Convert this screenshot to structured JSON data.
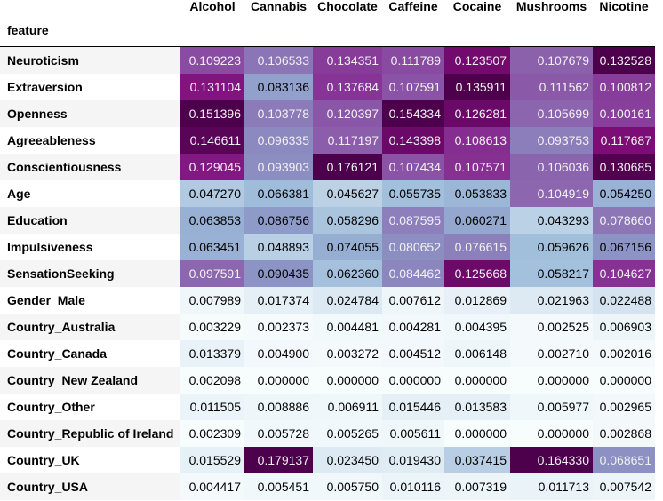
{
  "chart_data": {
    "type": "heatmap",
    "index_label": "feature",
    "columns": [
      "Alcohol",
      "Cannabis",
      "Chocolate",
      "Caffeine",
      "Cocaine",
      "Mushrooms",
      "Nicotine"
    ],
    "rows": [
      {
        "feature": "Neuroticism",
        "values": [
          "0.109223",
          "0.106533",
          "0.134351",
          "0.111789",
          "0.123507",
          "0.107679",
          "0.132528"
        ]
      },
      {
        "feature": "Extraversion",
        "values": [
          "0.131104",
          "0.083136",
          "0.137684",
          "0.107591",
          "0.135911",
          "0.111562",
          "0.100812"
        ]
      },
      {
        "feature": "Openness",
        "values": [
          "0.151396",
          "0.103778",
          "0.120397",
          "0.154334",
          "0.126281",
          "0.105699",
          "0.100161"
        ]
      },
      {
        "feature": "Agreeableness",
        "values": [
          "0.146611",
          "0.096335",
          "0.117197",
          "0.143398",
          "0.108613",
          "0.093753",
          "0.117687"
        ]
      },
      {
        "feature": "Conscientiousness",
        "values": [
          "0.129045",
          "0.093903",
          "0.176121",
          "0.107434",
          "0.107571",
          "0.106036",
          "0.130685"
        ]
      },
      {
        "feature": "Age",
        "values": [
          "0.047270",
          "0.066381",
          "0.045627",
          "0.055735",
          "0.053833",
          "0.104919",
          "0.054250"
        ]
      },
      {
        "feature": "Education",
        "values": [
          "0.063853",
          "0.086756",
          "0.058296",
          "0.087595",
          "0.060271",
          "0.043293",
          "0.078660"
        ]
      },
      {
        "feature": "Impulsiveness",
        "values": [
          "0.063451",
          "0.048893",
          "0.074055",
          "0.080652",
          "0.076615",
          "0.059626",
          "0.067156"
        ]
      },
      {
        "feature": "SensationSeeking",
        "values": [
          "0.097591",
          "0.090435",
          "0.062360",
          "0.084462",
          "0.125668",
          "0.058217",
          "0.104627"
        ]
      },
      {
        "feature": "Gender_Male",
        "values": [
          "0.007989",
          "0.017374",
          "0.024784",
          "0.007612",
          "0.012869",
          "0.021963",
          "0.022488"
        ]
      },
      {
        "feature": "Country_Australia",
        "values": [
          "0.003229",
          "0.002373",
          "0.004481",
          "0.004281",
          "0.004395",
          "0.002525",
          "0.006903"
        ]
      },
      {
        "feature": "Country_Canada",
        "values": [
          "0.013379",
          "0.004900",
          "0.003272",
          "0.004512",
          "0.006148",
          "0.002710",
          "0.002016"
        ]
      },
      {
        "feature": "Country_New Zealand",
        "values": [
          "0.002098",
          "0.000000",
          "0.000000",
          "0.000000",
          "0.000000",
          "0.000000",
          "0.000000"
        ]
      },
      {
        "feature": "Country_Other",
        "values": [
          "0.011505",
          "0.008886",
          "0.006911",
          "0.015446",
          "0.013583",
          "0.005977",
          "0.002965"
        ]
      },
      {
        "feature": "Country_Republic of Ireland",
        "values": [
          "0.002309",
          "0.005728",
          "0.005265",
          "0.005611",
          "0.000000",
          "0.000000",
          "0.002868"
        ]
      },
      {
        "feature": "Country_UK",
        "values": [
          "0.015529",
          "0.179137",
          "0.023450",
          "0.019430",
          "0.037415",
          "0.164330",
          "0.068651"
        ]
      },
      {
        "feature": "Country_USA",
        "values": [
          "0.004417",
          "0.005451",
          "0.005750",
          "0.010116",
          "0.007319",
          "0.011713",
          "0.007542"
        ]
      }
    ],
    "colormap": "BuPu",
    "colormap_colors": [
      "#f7fcfd",
      "#e0ecf4",
      "#bfd3e6",
      "#9ebcda",
      "#8c96c6",
      "#8c6bb1",
      "#88419d",
      "#810f7c",
      "#4d004b"
    ]
  }
}
